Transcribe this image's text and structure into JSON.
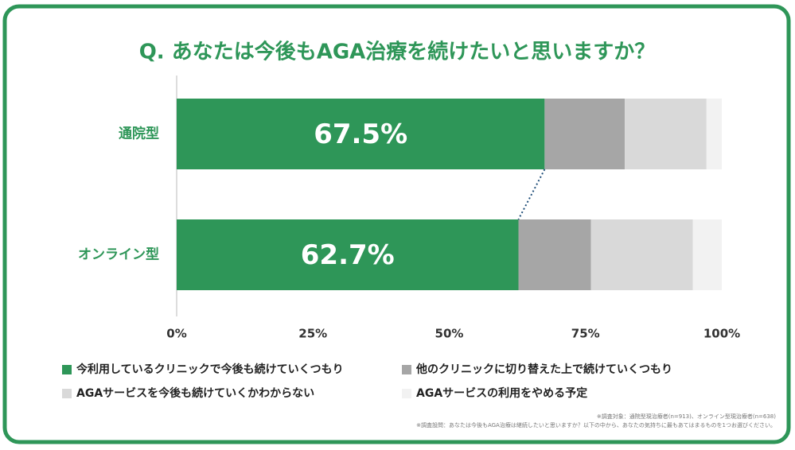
{
  "chart_data": {
    "type": "stacked-bar-horizontal",
    "title": "Q. あなたは今後もAGA治療を続けたいと思いますか？",
    "categories": [
      "通院型",
      "オンライン型"
    ],
    "series": [
      {
        "name": "今利用しているクリニックで今後も続けていくつもり",
        "color": "#2e9658",
        "values": [
          67.5,
          62.7
        ],
        "value_labels": [
          "67.5%",
          "62.7%"
        ]
      },
      {
        "name": "他のクリニックに切り替えた上で続けていくつもり",
        "color": "#a6a6a6",
        "values": [
          14.7,
          13.3
        ]
      },
      {
        "name": "AGAサービスを今後も続けていくかわからない",
        "color": "#d9d9d9",
        "values": [
          15.0,
          18.7
        ]
      },
      {
        "name": "AGAサービスの利用をやめる予定",
        "color": "#f2f2f2",
        "values": [
          2.8,
          5.3
        ]
      }
    ],
    "xlim": [
      0,
      100
    ],
    "xticks": [
      {
        "value": 0,
        "label": "0%"
      },
      {
        "value": 25,
        "label": "25%"
      },
      {
        "value": 50,
        "label": "50%"
      },
      {
        "value": 75,
        "label": "75%"
      },
      {
        "value": 100,
        "label": "100%"
      }
    ],
    "notes": [
      "※調査対象：通院型現治療者(n=913)、オンライン型現治療者(n=638)",
      "※調査設問：あなたは今後もAGA治療は継続したいと思いますか？以下の中から、あなたの気持ちに最もあてはまるものを1つお選びください。"
    ]
  }
}
